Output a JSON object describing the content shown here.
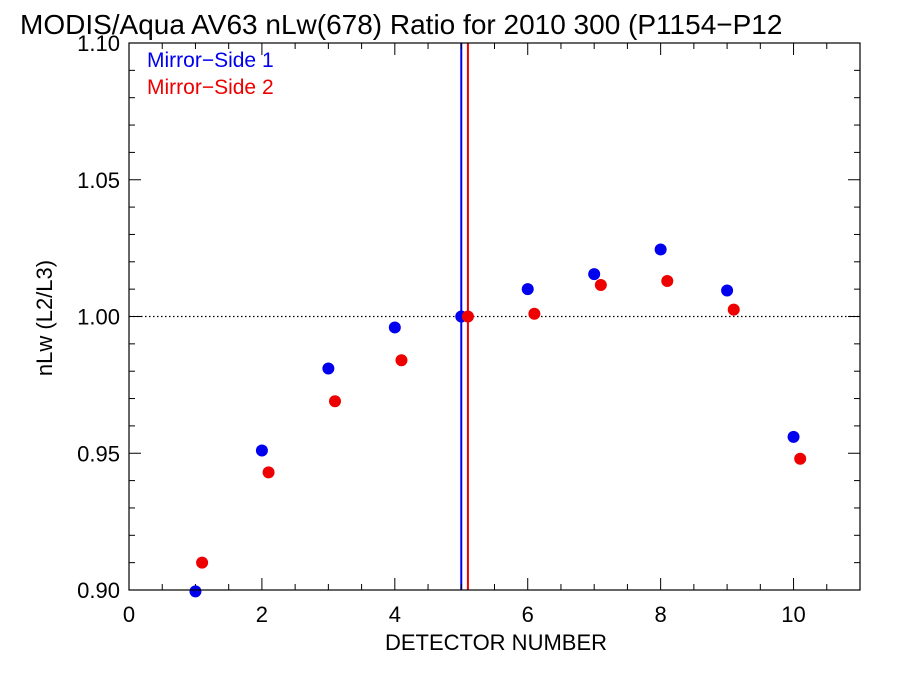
{
  "chart_data": {
    "type": "scatter",
    "title": "MODIS/Aqua AV63 nLw(678) Ratio for 2010 300 (P1154−P12",
    "xlabel": "DETECTOR NUMBER",
    "ylabel": "nLw (L2/L3)",
    "xlim": [
      0,
      11
    ],
    "ylim": [
      0.9,
      1.1
    ],
    "xticks": [
      0,
      2,
      4,
      6,
      8,
      10
    ],
    "xtick_labels": [
      "0",
      "2",
      "4",
      "6",
      "8",
      "10"
    ],
    "yticks": [
      0.9,
      0.95,
      1.0,
      1.05,
      1.1
    ],
    "ytick_labels": [
      "0.90",
      "0.95",
      "1.00",
      "1.05",
      "1.10"
    ],
    "legend_placement": "top-left",
    "reference_line_y": 1.0,
    "vertical_lines": [
      {
        "x": 5.0,
        "color": "#0000ee"
      },
      {
        "x": 5.1,
        "color": "#ee0000"
      }
    ],
    "series": [
      {
        "name": "Mirror−Side 1",
        "color": "#0000ee",
        "x": [
          1,
          2,
          3,
          4,
          5,
          6,
          7,
          8,
          9,
          10
        ],
        "y": [
          0.8995,
          0.951,
          0.981,
          0.996,
          1.0,
          1.01,
          1.0155,
          1.0245,
          1.0095,
          0.956
        ]
      },
      {
        "name": "Mirror−Side 2",
        "color": "#ee0000",
        "x": [
          1.1,
          2.1,
          3.1,
          4.1,
          5.1,
          6.1,
          7.1,
          8.1,
          9.1,
          10.1
        ],
        "y": [
          0.91,
          0.943,
          0.969,
          0.984,
          1.0,
          1.001,
          1.0115,
          1.013,
          1.0025,
          0.948
        ]
      }
    ]
  }
}
